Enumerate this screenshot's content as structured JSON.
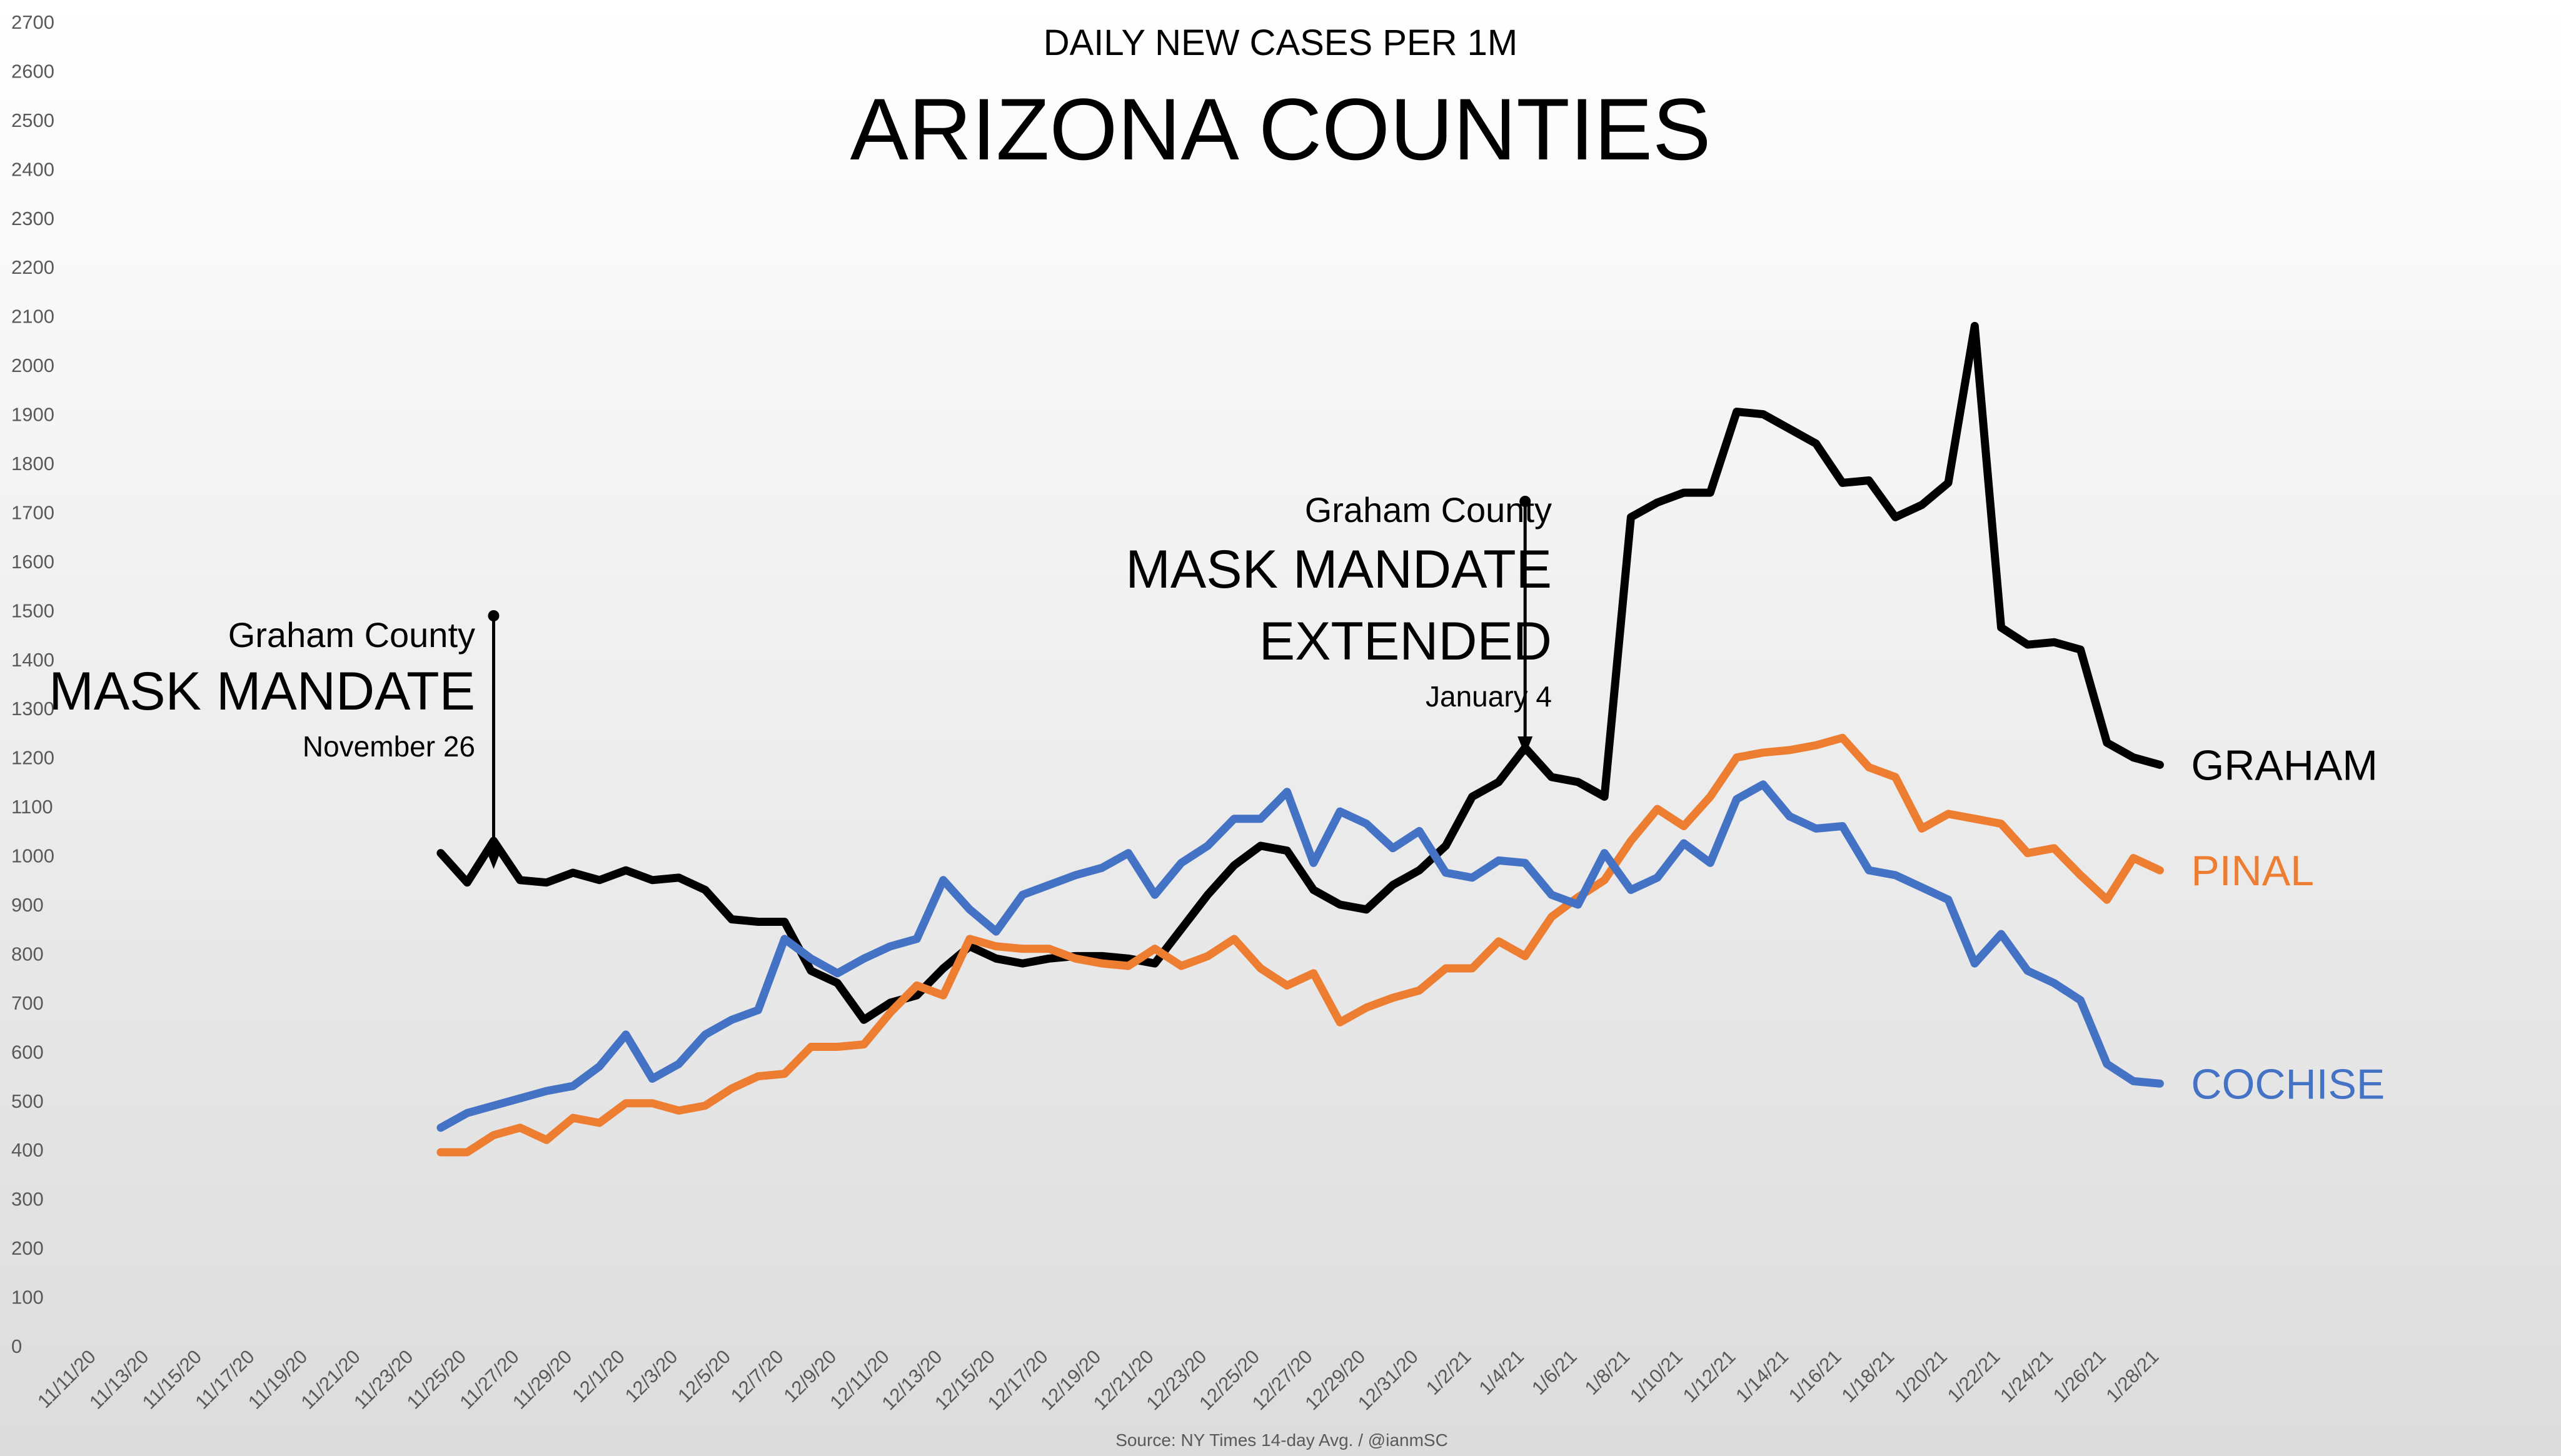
{
  "chart_data": {
    "type": "line",
    "subtitle": "DAILY NEW CASES PER 1M",
    "title": "ARIZONA COUNTIES",
    "source": "Source: NY Times 14-day Avg.  / @ianmSC",
    "ylim": [
      0,
      2700
    ],
    "yticks": [
      0,
      100,
      200,
      300,
      400,
      500,
      600,
      700,
      800,
      900,
      1000,
      1100,
      1200,
      1300,
      1400,
      1500,
      1600,
      1700,
      1800,
      1900,
      2000,
      2100,
      2200,
      2300,
      2400,
      2500,
      2600,
      2700
    ],
    "x_tick_labels": [
      "11/11/20",
      "11/13/20",
      "11/15/20",
      "11/17/20",
      "11/19/20",
      "11/21/20",
      "11/23/20",
      "11/25/20",
      "11/27/20",
      "11/29/20",
      "12/1/20",
      "12/3/20",
      "12/5/20",
      "12/7/20",
      "12/9/20",
      "12/11/20",
      "12/13/20",
      "12/15/20",
      "12/17/20",
      "12/19/20",
      "12/21/20",
      "12/23/20",
      "12/25/20",
      "12/27/20",
      "12/29/20",
      "12/31/20",
      "1/2/21",
      "1/4/21",
      "1/6/21",
      "1/8/21",
      "1/10/21",
      "1/12/21",
      "1/14/21",
      "1/16/21",
      "1/18/21",
      "1/20/21",
      "1/22/21",
      "1/24/21",
      "1/26/21",
      "1/28/21"
    ],
    "x_start": "11/24/20",
    "x_end": "1/28/21",
    "grid": false,
    "series": [
      {
        "name": "GRAHAM",
        "color": "#000000",
        "values": [
          1005,
          945,
          1030,
          950,
          945,
          965,
          950,
          970,
          950,
          955,
          930,
          870,
          865,
          865,
          765,
          740,
          665,
          700,
          715,
          770,
          815,
          790,
          780,
          790,
          795,
          795,
          790,
          780,
          850,
          920,
          980,
          1020,
          1010,
          930,
          900,
          890,
          940,
          970,
          1020,
          1120,
          1150,
          1220,
          1160,
          1150,
          1120,
          1690,
          1720,
          1740,
          1740,
          1905,
          1900,
          1870,
          1840,
          1760,
          1765,
          1690,
          1715,
          1760,
          2080,
          1465,
          1430,
          1435,
          1420,
          1230,
          1200,
          1185
        ]
      },
      {
        "name": "PINAL",
        "color": "#ED7D31",
        "values": [
          395,
          395,
          430,
          445,
          420,
          465,
          455,
          495,
          495,
          480,
          490,
          525,
          550,
          555,
          610,
          610,
          615,
          680,
          735,
          715,
          830,
          815,
          810,
          810,
          790,
          780,
          775,
          810,
          775,
          795,
          830,
          770,
          735,
          760,
          660,
          690,
          710,
          725,
          770,
          770,
          825,
          795,
          875,
          915,
          950,
          1030,
          1095,
          1060,
          1120,
          1200,
          1210,
          1215,
          1225,
          1240,
          1180,
          1160,
          1055,
          1085,
          1075,
          1065,
          1005,
          1015,
          960,
          910,
          995,
          970
        ]
      },
      {
        "name": "COCHISE",
        "color": "#4472C4",
        "values": [
          445,
          475,
          490,
          505,
          520,
          530,
          570,
          635,
          545,
          575,
          635,
          665,
          685,
          830,
          790,
          760,
          790,
          815,
          830,
          950,
          890,
          845,
          920,
          940,
          960,
          975,
          1005,
          920,
          985,
          1020,
          1075,
          1075,
          1130,
          985,
          1090,
          1065,
          1015,
          1050,
          965,
          955,
          990,
          985,
          920,
          900,
          1005,
          930,
          955,
          1025,
          985,
          1115,
          1145,
          1080,
          1055,
          1060,
          970,
          960,
          935,
          910,
          780,
          840,
          765,
          740,
          705,
          575,
          540,
          535
        ]
      }
    ],
    "annotations": [
      {
        "line1": "Graham County",
        "line2": "MASK MANDATE",
        "line3": "",
        "date": "November 26",
        "at_date": "11/26/20"
      },
      {
        "line1": "Graham County",
        "line2": "MASK MANDATE",
        "line3": "EXTENDED",
        "date": "January 4",
        "at_date": "1/4/21"
      }
    ]
  }
}
